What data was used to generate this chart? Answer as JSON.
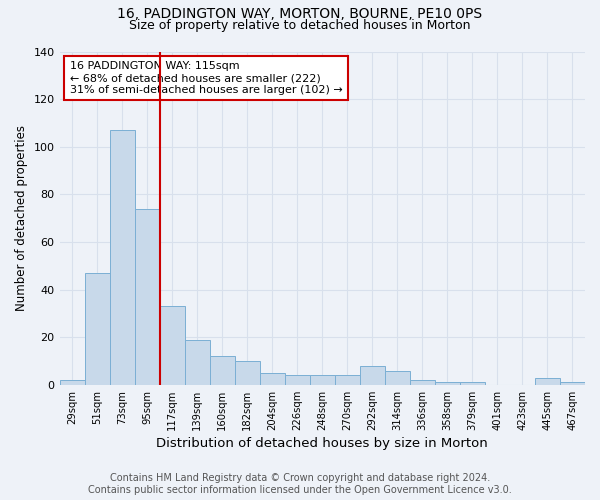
{
  "title1": "16, PADDINGTON WAY, MORTON, BOURNE, PE10 0PS",
  "title2": "Size of property relative to detached houses in Morton",
  "xlabel": "Distribution of detached houses by size in Morton",
  "ylabel": "Number of detached properties",
  "categories": [
    "29sqm",
    "51sqm",
    "73sqm",
    "95sqm",
    "117sqm",
    "139sqm",
    "160sqm",
    "182sqm",
    "204sqm",
    "226sqm",
    "248sqm",
    "270sqm",
    "292sqm",
    "314sqm",
    "336sqm",
    "358sqm",
    "379sqm",
    "401sqm",
    "423sqm",
    "445sqm",
    "467sqm"
  ],
  "values": [
    2,
    47,
    107,
    74,
    33,
    19,
    12,
    10,
    5,
    4,
    4,
    4,
    8,
    6,
    2,
    1,
    1,
    0,
    0,
    3,
    1
  ],
  "bar_color": "#c8d9ea",
  "bar_edge_color": "#7bafd4",
  "vline_x": 3.5,
  "vline_color": "#cc0000",
  "annotation_text": "16 PADDINGTON WAY: 115sqm\n← 68% of detached houses are smaller (222)\n31% of semi-detached houses are larger (102) →",
  "annotation_box_color": "#ffffff",
  "annotation_box_edge_color": "#cc0000",
  "ylim": [
    0,
    140
  ],
  "yticks": [
    0,
    20,
    40,
    60,
    80,
    100,
    120,
    140
  ],
  "background_color": "#eef2f8",
  "grid_color": "#d8e0ec",
  "footer": "Contains HM Land Registry data © Crown copyright and database right 2024.\nContains public sector information licensed under the Open Government Licence v3.0.",
  "title1_fontsize": 10,
  "title2_fontsize": 9,
  "xlabel_fontsize": 9.5,
  "ylabel_fontsize": 8.5,
  "footer_fontsize": 7
}
